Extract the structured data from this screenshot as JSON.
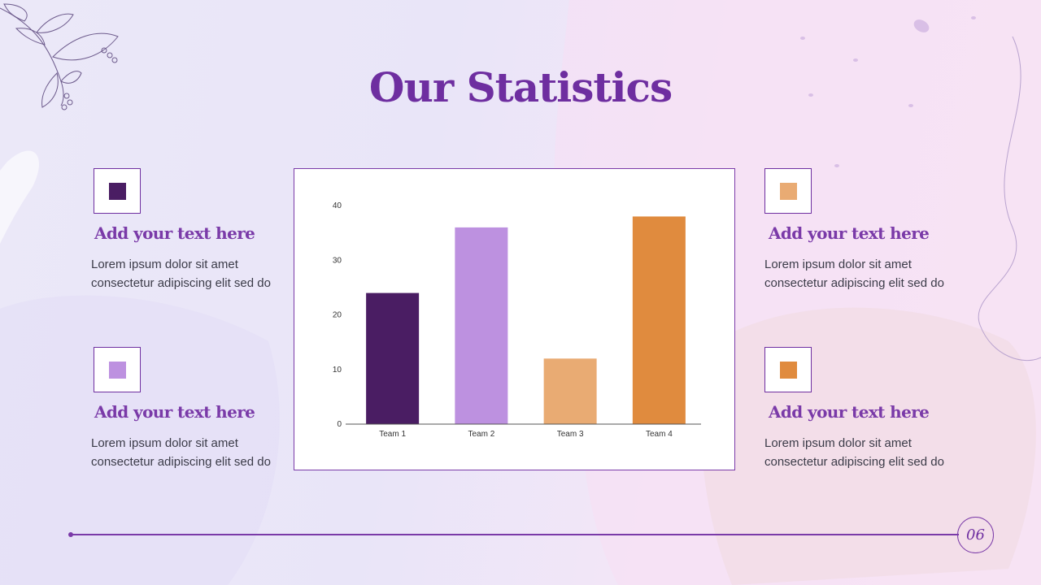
{
  "slide": {
    "title": "Our Statistics",
    "page_number": "06"
  },
  "cards": [
    {
      "heading": "Add your text here",
      "line1": "Lorem ipsum dolor sit amet",
      "line2": "consectetur adipiscing elit sed do",
      "color": "#4a1d63"
    },
    {
      "heading": "Add your text here",
      "line1": "Lorem ipsum dolor sit amet",
      "line2": "consectetur adipiscing elit sed do",
      "color": "#bd91e0"
    },
    {
      "heading": "Add your text here",
      "line1": "Lorem ipsum dolor sit amet",
      "line2": "consectetur adipiscing elit sed do",
      "color": "#e9ab73"
    },
    {
      "heading": "Add your text here",
      "line1": "Lorem ipsum dolor sit amet",
      "line2": "consectetur adipiscing elit sed do",
      "color": "#e08b3e"
    }
  ],
  "chart_data": {
    "type": "bar",
    "title": "",
    "xlabel": "",
    "ylabel": "",
    "categories": [
      "Team 1",
      "Team 2",
      "Team 3",
      "Team 4"
    ],
    "values": [
      24,
      36,
      12,
      38
    ],
    "colors": [
      "#4a1d63",
      "#bd91e0",
      "#e9ab73",
      "#e08b3e"
    ],
    "ylim": [
      0,
      40
    ],
    "yticks": [
      0,
      10,
      20,
      30,
      40
    ],
    "grid": false
  }
}
